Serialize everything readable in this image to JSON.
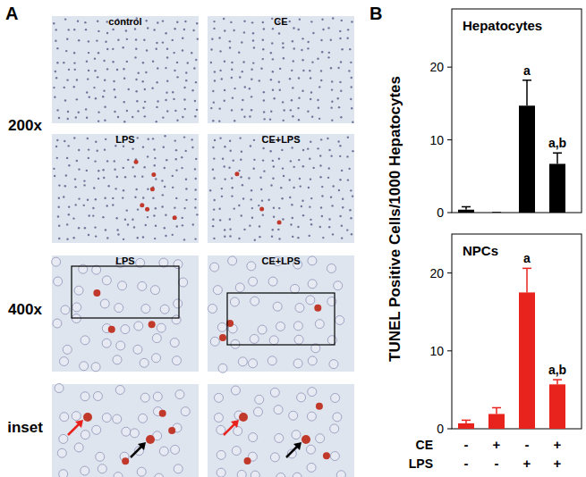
{
  "panel_a": {
    "label": "A",
    "magnifications": [
      {
        "label": "200x",
        "rows": [
          [
            "control",
            "CE"
          ],
          [
            "LPS",
            "CE+LPS"
          ]
        ]
      },
      {
        "label": "400x",
        "rows": [
          [
            "LPS",
            "CE+LPS"
          ]
        ]
      },
      {
        "label": "inset",
        "rows": [
          [
            null,
            null
          ]
        ]
      }
    ]
  },
  "panel_b": {
    "label": "B",
    "y_label": "TUNEL Positive Cells/1000 Hepatocytes",
    "treatments": [
      {
        "name": "CE",
        "signs": [
          "-",
          "+",
          "-",
          "+"
        ]
      },
      {
        "name": "LPS",
        "signs": [
          "-",
          "-",
          "+",
          "+"
        ]
      }
    ]
  },
  "chart_data": [
    {
      "type": "bar",
      "title": "Hepatocytes",
      "categories": [
        null,
        null,
        null,
        null
      ],
      "series": [
        {
          "name": "Hepatocytes",
          "color": "#000000",
          "values": [
            0.4,
            0,
            14.7,
            6.7
          ],
          "errors": [
            0.4,
            0,
            3.5,
            1.5
          ],
          "annotations": [
            null,
            null,
            "a",
            "a,b"
          ]
        }
      ],
      "ylim": [
        0,
        28
      ],
      "yticks": [
        0,
        10,
        20
      ]
    },
    {
      "type": "bar",
      "title": "NPCs",
      "categories": [
        null,
        null,
        null,
        null
      ],
      "series": [
        {
          "name": "NPCs",
          "color": "#e8231e",
          "values": [
            0.7,
            1.9,
            17.5,
            5.7
          ],
          "errors": [
            0.4,
            0.8,
            3.1,
            0.6
          ],
          "annotations": [
            null,
            null,
            "a",
            "a,b"
          ]
        }
      ],
      "ylim": [
        0,
        25
      ],
      "yticks": [
        0,
        10,
        20
      ]
    }
  ]
}
